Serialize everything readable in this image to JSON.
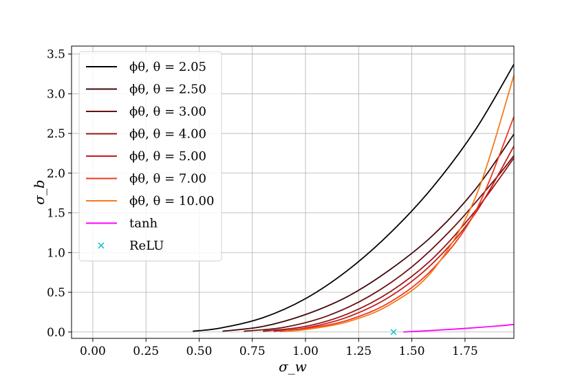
{
  "chart_data": {
    "type": "line",
    "xlabel": "σ_w",
    "ylabel": "σ_b",
    "xlim": [
      -0.1,
      1.98
    ],
    "ylim": [
      -0.08,
      3.6
    ],
    "xticks": [
      "0.00",
      "0.25",
      "0.50",
      "0.75",
      "1.00",
      "1.25",
      "1.50",
      "1.75"
    ],
    "yticks": [
      "0.0",
      "0.5",
      "1.0",
      "1.5",
      "2.0",
      "2.5",
      "3.0",
      "3.5"
    ],
    "grid": true,
    "legend_position": "top-left",
    "series": [
      {
        "name": "ϕθ, θ = 2.05",
        "color": "#000000",
        "x": [
          0.47,
          0.6,
          0.8,
          1.0,
          1.2,
          1.4,
          1.6,
          1.8,
          1.98
        ],
        "y": [
          0.01,
          0.05,
          0.18,
          0.42,
          0.78,
          1.25,
          1.83,
          2.55,
          3.37
        ]
      },
      {
        "name": "ϕθ, θ = 2.50",
        "color": "#3d0a0a",
        "x": [
          0.61,
          0.8,
          1.0,
          1.2,
          1.4,
          1.6,
          1.8,
          1.98
        ],
        "y": [
          0.01,
          0.07,
          0.22,
          0.45,
          0.79,
          1.22,
          1.8,
          2.49
        ]
      },
      {
        "name": "ϕθ, θ = 3.00",
        "color": "#6b0f0f",
        "x": [
          0.71,
          0.9,
          1.1,
          1.3,
          1.5,
          1.7,
          1.9,
          1.98
        ],
        "y": [
          0.01,
          0.06,
          0.2,
          0.45,
          0.82,
          1.33,
          1.95,
          2.22
        ]
      },
      {
        "name": "ϕθ, θ = 4.00",
        "color": "#9a1414",
        "x": [
          0.8,
          1.0,
          1.2,
          1.4,
          1.6,
          1.8,
          1.98
        ],
        "y": [
          0.01,
          0.07,
          0.23,
          0.51,
          0.93,
          1.53,
          2.19
        ]
      },
      {
        "name": "ϕθ, θ = 5.00",
        "color": "#c41c1c",
        "x": [
          0.85,
          1.0,
          1.2,
          1.4,
          1.6,
          1.8,
          1.98
        ],
        "y": [
          0.01,
          0.05,
          0.19,
          0.45,
          0.87,
          1.5,
          2.34
        ]
      },
      {
        "name": "ϕθ, θ = 7.00",
        "color": "#ee3a1a",
        "x": [
          0.88,
          1.0,
          1.2,
          1.4,
          1.6,
          1.8,
          1.98
        ],
        "y": [
          0.01,
          0.04,
          0.15,
          0.38,
          0.8,
          1.52,
          2.71
        ]
      },
      {
        "name": "ϕθ, θ = 10.00",
        "color": "#f57a1a",
        "x": [
          0.9,
          1.0,
          1.2,
          1.4,
          1.6,
          1.8,
          1.98
        ],
        "y": [
          0.01,
          0.03,
          0.13,
          0.35,
          0.78,
          1.7,
          3.23
        ]
      },
      {
        "name": "tanh",
        "color": "#ff00ff",
        "x": [
          1.46,
          1.6,
          1.75,
          1.9,
          1.98
        ],
        "y": [
          0.0,
          0.02,
          0.045,
          0.075,
          0.095
        ]
      },
      {
        "name": "ReLU",
        "color": "#1fc7c7",
        "marker": "x",
        "x": [
          1.414
        ],
        "y": [
          0.0
        ]
      }
    ]
  }
}
